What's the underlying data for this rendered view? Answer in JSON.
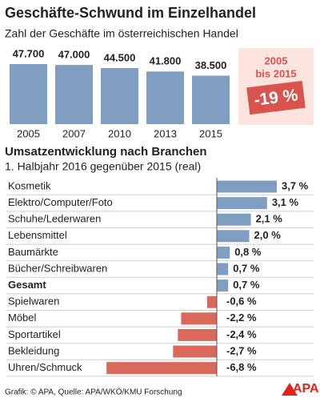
{
  "chart_data": [
    {
      "type": "bar",
      "title": "Geschäfte-Schwund im Einzelhandel",
      "subtitle": "Zahl der Geschäfte im österreichischen Handel",
      "categories": [
        "2005",
        "2007",
        "2010",
        "2013",
        "2015"
      ],
      "values": [
        47700,
        47000,
        44500,
        41800,
        38500
      ],
      "value_labels": [
        "47.700",
        "47.000",
        "44.500",
        "41.800",
        "38.500"
      ],
      "color": "#7f9ec2",
      "annotation_lines": [
        "2005",
        "bis 2015"
      ],
      "annotation_badge": "-19 %"
    },
    {
      "type": "hbar",
      "title": "Umsatzentwicklung nach Branchen",
      "subtitle": "1. Halbjahr 2016 gegenüber 2015 (real)",
      "categories": [
        "Kosmetik",
        "Elektro/Computer/Foto",
        "Schuhe/Lederwaren",
        "Lebensmittel",
        "Baumärkte",
        "Bücher/Schreibwaren",
        "Gesamt",
        "Spielwaren",
        "Möbel",
        "Sportartikel",
        "Bekleidung",
        "Uhren/Schmuck"
      ],
      "values": [
        3.7,
        3.1,
        2.1,
        2.0,
        0.8,
        0.7,
        0.7,
        -0.6,
        -2.2,
        -2.4,
        -2.7,
        -6.8
      ],
      "value_labels": [
        "3,7 %",
        "3,1 %",
        "2,1 %",
        "2,0 %",
        "0,8 %",
        "0,7 %",
        "0,7 %",
        "-0,6 %",
        "-2,2 %",
        "-2,4 %",
        "-2,7 %",
        "-6,8 %"
      ],
      "color": "#7f9ec2",
      "negative_color": "#d9695b"
    }
  ],
  "footer": "Grafik: © APA, Quelle: APA/WKÖ/KMU Forschung",
  "logo": "APA"
}
